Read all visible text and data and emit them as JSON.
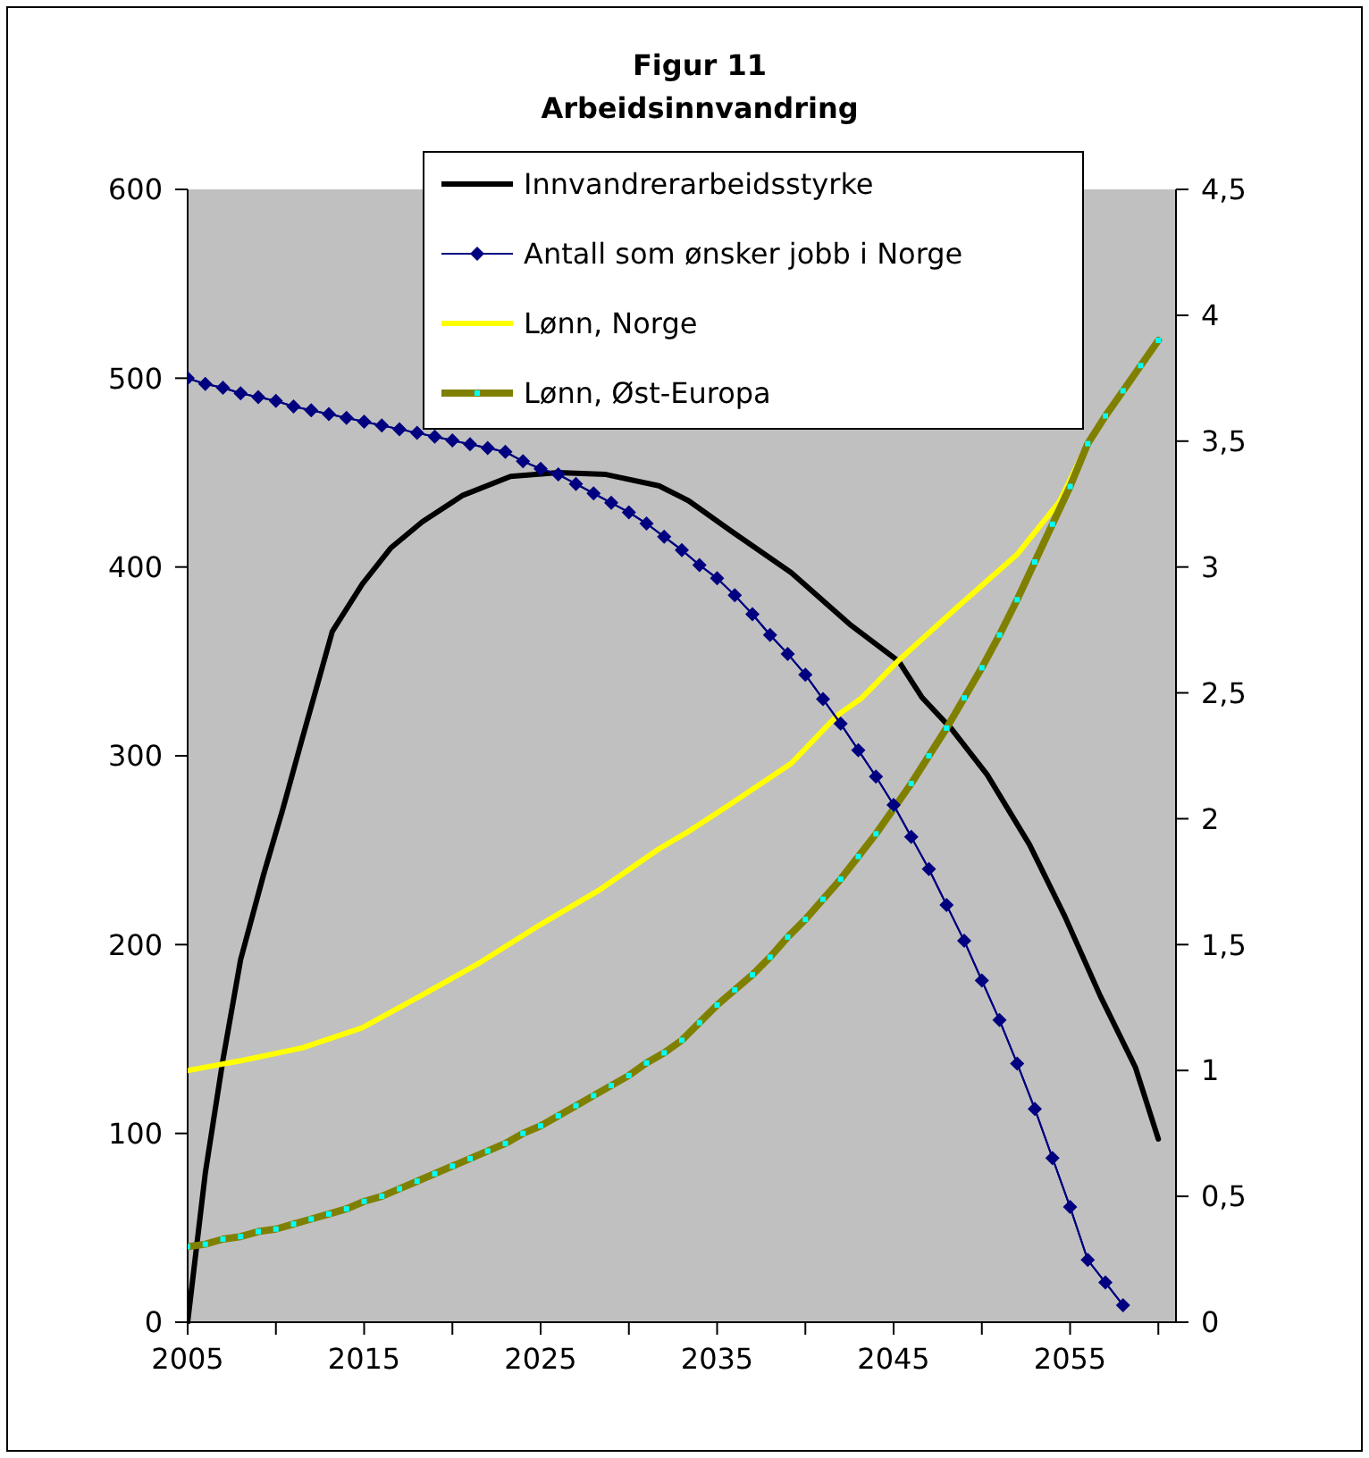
{
  "chart_data": {
    "type": "line",
    "title": "Figur 11",
    "subtitle": "Arbeidsinnvandring",
    "x": [
      2005,
      2006,
      2007,
      2008,
      2009,
      2010,
      2011,
      2012,
      2013,
      2014,
      2015,
      2016,
      2017,
      2018,
      2019,
      2020,
      2021,
      2022,
      2023,
      2024,
      2025,
      2026,
      2027,
      2028,
      2029,
      2030,
      2031,
      2032,
      2033,
      2034,
      2035,
      2036,
      2037,
      2038,
      2039,
      2040,
      2041,
      2042,
      2043,
      2044,
      2045,
      2046,
      2047,
      2048,
      2049,
      2050,
      2051,
      2052,
      2053,
      2054,
      2055,
      2056,
      2057,
      2058,
      2059,
      2060
    ],
    "series": [
      {
        "name": "Innvandrerarbeidsstyrke",
        "color": "#000000",
        "marker": "none",
        "x": [
          2005,
          2006,
          2007,
          2008,
          2009.3,
          2010.4,
          2011.4,
          2013.2,
          2014.9,
          2016.5,
          2018.3,
          2020.6,
          2023.3,
          2026,
          2028.7,
          2031.7,
          2033.4,
          2035.8,
          2039.2,
          2042.6,
          2045.3,
          2046.6,
          2048.3,
          2050.3,
          2052.7,
          2054.7,
          2056.7,
          2058.7,
          2060
        ],
        "values": [
          0,
          79,
          139,
          192,
          237,
          272,
          306,
          366,
          391,
          410,
          424,
          438,
          448,
          450,
          449,
          443,
          435,
          419,
          397,
          369,
          350,
          331,
          314,
          290,
          253,
          215,
          173,
          135,
          97
        ]
      },
      {
        "name": "Antall som ønsker jobb i Norge",
        "color": "#000080",
        "marker": "diamond",
        "values": [
          500,
          497,
          495,
          492,
          490,
          488,
          485,
          483,
          481,
          479,
          477,
          475,
          473,
          471,
          469,
          467,
          465,
          463,
          461,
          456,
          452,
          449,
          444,
          439,
          434,
          429,
          423,
          416,
          409,
          401,
          394,
          385,
          375,
          364,
          354,
          343,
          330,
          317,
          303,
          289,
          274,
          257,
          240,
          221,
          202,
          181,
          160,
          137,
          113,
          87,
          61,
          33,
          21,
          9,
          null,
          null
        ]
      },
      {
        "name": "Lønn, Norge",
        "color": "#ffff00",
        "marker": "none",
        "axis": "y2",
        "x": [
          2005,
          2008.1,
          2011.5,
          2014.9,
          2018.3,
          2021.6,
          2025,
          2028.4,
          2031.7,
          2033.4,
          2035.8,
          2039.2,
          2041.8,
          2043.2,
          2045.3,
          2048.6,
          2052,
          2054.4,
          2056
        ],
        "values": [
          1.0,
          1.04,
          1.09,
          1.17,
          1.3,
          1.43,
          1.58,
          1.72,
          1.88,
          1.95,
          2.06,
          2.22,
          2.41,
          2.48,
          2.63,
          2.84,
          3.05,
          3.26,
          3.49
        ]
      },
      {
        "name": "Lønn, Øst-Europa",
        "color": "#808000",
        "marker": "square",
        "axis": "y2",
        "values": [
          0.3,
          0.31,
          0.33,
          0.34,
          0.36,
          0.37,
          0.39,
          0.41,
          0.43,
          0.45,
          0.48,
          0.5,
          0.53,
          0.56,
          0.59,
          0.62,
          0.65,
          0.68,
          0.71,
          0.75,
          0.78,
          0.82,
          0.86,
          0.9,
          0.94,
          0.98,
          1.03,
          1.07,
          1.12,
          1.19,
          1.26,
          1.32,
          1.38,
          1.45,
          1.53,
          1.6,
          1.68,
          1.76,
          1.85,
          1.94,
          2.04,
          2.14,
          2.25,
          2.36,
          2.48,
          2.6,
          2.73,
          2.87,
          3.02,
          3.17,
          3.32,
          3.49,
          3.6,
          3.7,
          3.8,
          3.9
        ]
      }
    ],
    "xlim": [
      2005,
      2061
    ],
    "xticks": [
      2005,
      {
        "value": 2010,
        "label": null
      },
      2015,
      {
        "value": 2020,
        "label": null
      },
      2025,
      {
        "value": 2030,
        "label": null
      },
      2035,
      {
        "value": 2040,
        "label": null
      },
      2045,
      {
        "value": 2050,
        "label": null
      },
      2055,
      {
        "value": 2060,
        "label": null
      }
    ],
    "ylim": [
      0,
      600
    ],
    "yticks": [
      0,
      100,
      200,
      300,
      400,
      500,
      600
    ],
    "y2lim": [
      0,
      4.5
    ],
    "y2ticks": [
      0,
      {
        "value": 0.5,
        "label": "0,5"
      },
      1,
      {
        "value": 1.5,
        "label": "1,5"
      },
      2,
      {
        "value": 2.5,
        "label": "2,5"
      },
      3,
      {
        "value": 3.5,
        "label": "3,5"
      },
      4,
      {
        "value": 4.5,
        "label": "4,5"
      }
    ],
    "grid": false,
    "legend": "top"
  }
}
